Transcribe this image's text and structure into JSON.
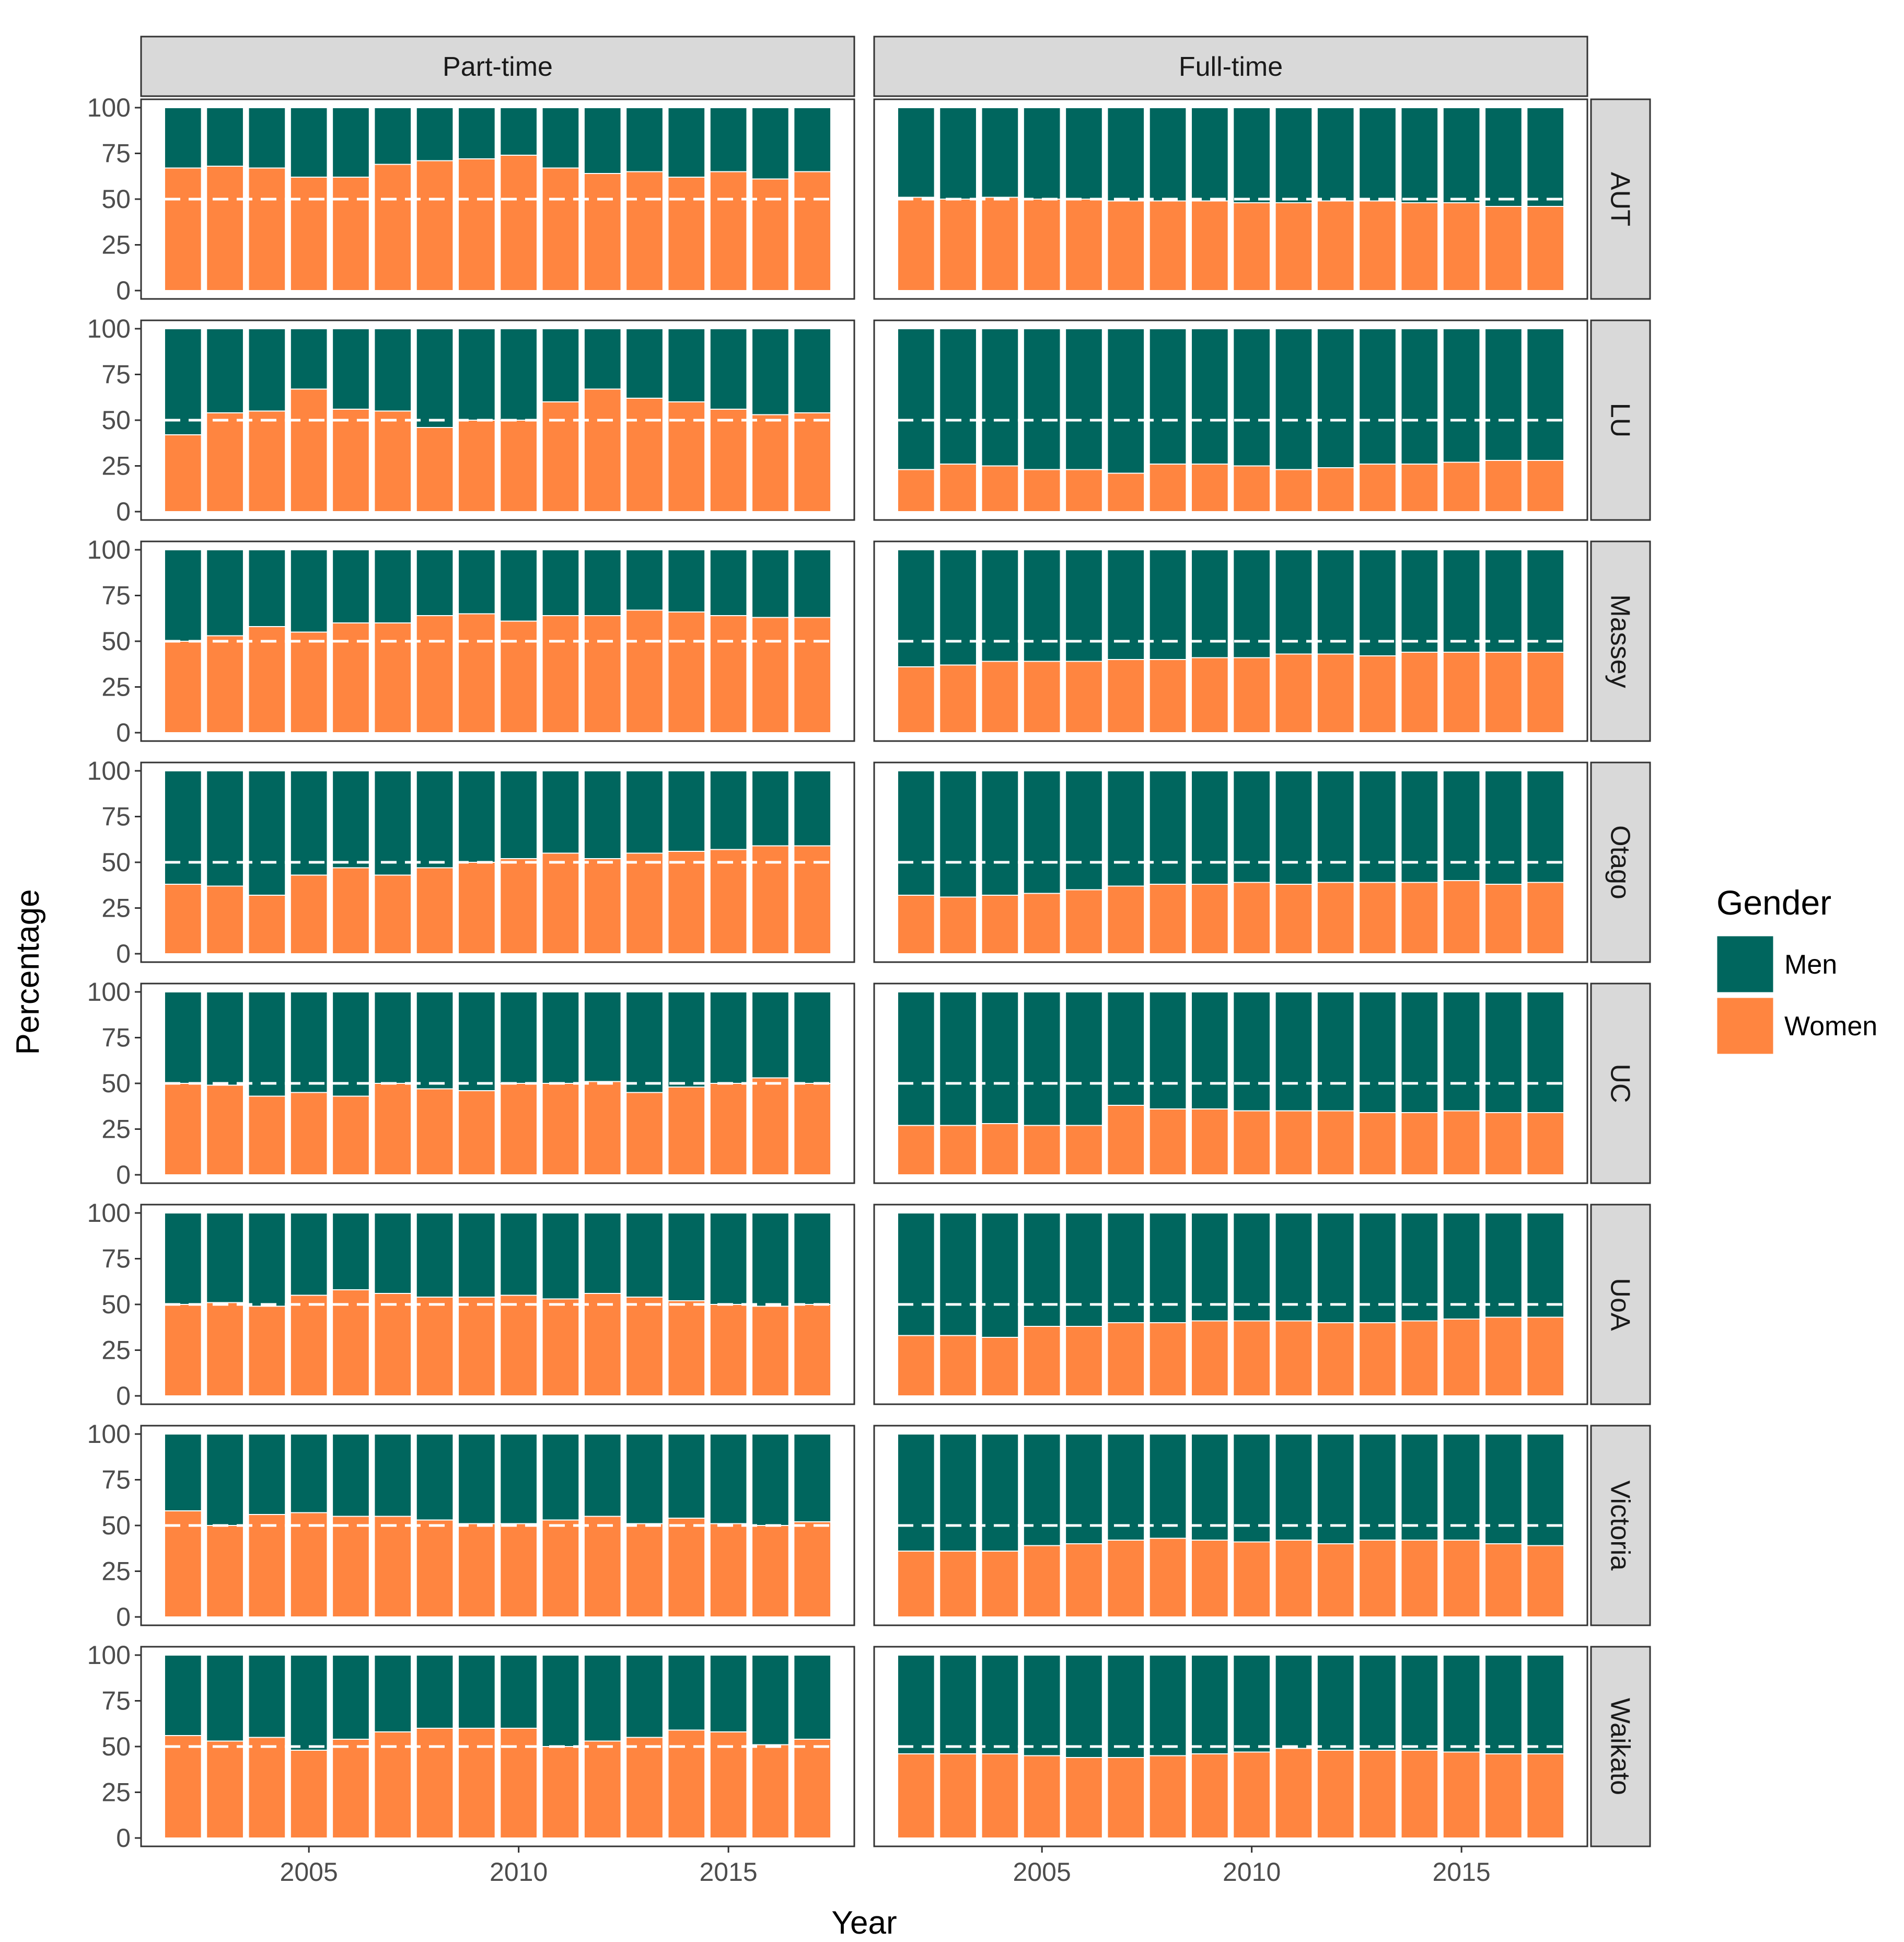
{
  "chart_data": {
    "type": "bar",
    "stacked": "percent",
    "xlabel": "Year",
    "ylabel": "Percentage",
    "ylim": [
      0,
      100
    ],
    "y_ticks": [
      "0",
      "25",
      "50",
      "75",
      "100"
    ],
    "x_ticks": [
      {
        "value": 2005,
        "label": "2005"
      },
      {
        "value": 2010,
        "label": "2010"
      },
      {
        "value": 2015,
        "label": "2015"
      }
    ],
    "reference_line": 50,
    "years": [
      2002,
      2003,
      2004,
      2005,
      2006,
      2007,
      2008,
      2009,
      2010,
      2011,
      2012,
      2013,
      2014,
      2015,
      2016,
      2017
    ],
    "columns": [
      "Part-time",
      "Full-time"
    ],
    "rows": [
      "AUT",
      "LU",
      "Massey",
      "Otago",
      "UC",
      "UoA",
      "Victoria",
      "Waikato"
    ],
    "legend": {
      "title": "Gender",
      "position": "right",
      "entries": [
        {
          "label": "Men",
          "color": "#00665e"
        },
        {
          "label": "Women",
          "color": "#ff8540"
        }
      ]
    },
    "women_percent": {
      "AUT": {
        "Part-time": [
          67,
          68,
          67,
          62,
          62,
          69,
          71,
          72,
          74,
          67,
          64,
          65,
          62,
          65,
          61,
          65
        ],
        "Full-time": [
          51,
          50,
          51,
          50,
          50,
          49,
          49,
          49,
          48,
          48,
          49,
          49,
          48,
          48,
          46,
          46
        ]
      },
      "LU": {
        "Part-time": [
          42,
          54,
          55,
          67,
          56,
          55,
          46,
          50,
          50,
          60,
          67,
          62,
          60,
          56,
          53,
          54
        ],
        "Full-time": [
          23,
          26,
          25,
          23,
          23,
          21,
          26,
          26,
          25,
          23,
          24,
          26,
          26,
          27,
          28,
          28
        ]
      },
      "Massey": {
        "Part-time": [
          50,
          53,
          58,
          55,
          60,
          60,
          64,
          65,
          61,
          64,
          64,
          67,
          66,
          64,
          63,
          63
        ],
        "Full-time": [
          36,
          37,
          39,
          39,
          39,
          40,
          40,
          41,
          41,
          43,
          43,
          42,
          44,
          44,
          44,
          44
        ]
      },
      "Otago": {
        "Part-time": [
          38,
          37,
          32,
          43,
          47,
          43,
          47,
          50,
          52,
          55,
          52,
          55,
          56,
          57,
          59,
          59
        ],
        "Full-time": [
          32,
          31,
          32,
          33,
          35,
          37,
          38,
          38,
          39,
          38,
          39,
          39,
          39,
          40,
          38,
          39
        ]
      },
      "UC": {
        "Part-time": [
          50,
          49,
          43,
          45,
          43,
          50,
          47,
          46,
          50,
          50,
          51,
          45,
          48,
          50,
          53,
          50
        ],
        "Full-time": [
          27,
          27,
          28,
          27,
          27,
          38,
          36,
          36,
          35,
          35,
          35,
          34,
          34,
          35,
          34,
          34
        ]
      },
      "UoA": {
        "Part-time": [
          50,
          51,
          49,
          55,
          58,
          56,
          54,
          54,
          55,
          53,
          56,
          54,
          52,
          50,
          49,
          50
        ],
        "Full-time": [
          33,
          33,
          32,
          38,
          38,
          40,
          40,
          41,
          41,
          41,
          40,
          40,
          41,
          42,
          43,
          43
        ]
      },
      "Victoria": {
        "Part-time": [
          58,
          50,
          56,
          57,
          55,
          55,
          53,
          51,
          51,
          53,
          55,
          51,
          54,
          51,
          50,
          52
        ],
        "Full-time": [
          36,
          36,
          36,
          39,
          40,
          42,
          43,
          42,
          41,
          42,
          40,
          42,
          42,
          42,
          40,
          39
        ]
      },
      "Waikato": {
        "Part-time": [
          56,
          53,
          55,
          48,
          54,
          58,
          60,
          60,
          60,
          50,
          53,
          55,
          59,
          58,
          51,
          54
        ],
        "Full-time": [
          46,
          46,
          46,
          45,
          44,
          44,
          45,
          46,
          47,
          49,
          48,
          48,
          48,
          47,
          46,
          46
        ]
      }
    }
  }
}
